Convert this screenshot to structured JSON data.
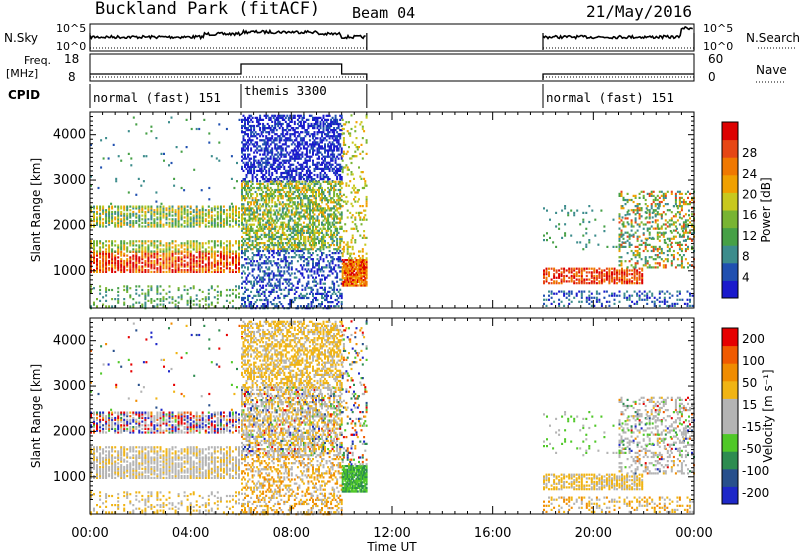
{
  "header": {
    "station": "Buckland Park (fitACF)",
    "beam": "Beam 04",
    "date": "21/May/2016"
  },
  "params": {
    "nsky_label": "N.Sky",
    "nsky_ticks": [
      "10^5",
      "10^0"
    ],
    "nsearch_label": "N.Search",
    "nsearch_ticks": [
      "10^5",
      "10^0"
    ],
    "freq_label_1": "Freq.",
    "freq_label_2": "[MHz]",
    "freq_ticks": [
      "18",
      "8"
    ],
    "nave_label": "Nave",
    "nave_ticks": [
      "60",
      "0"
    ],
    "cpid_label": "CPID",
    "cpid_segments": [
      {
        "label": "normal (fast) 151",
        "start_hour": 0
      },
      {
        "label": "themis 3300",
        "start_hour": 6
      },
      {
        "label": "normal (fast) 151",
        "start_hour": 18
      }
    ]
  },
  "chart_data": [
    {
      "type": "heatmap",
      "name": "power",
      "ylabel": "Slant Range [km]",
      "xlabel": "",
      "xlim": [
        0,
        24
      ],
      "ylim": [
        180,
        4500
      ],
      "yticks": [
        1000,
        2000,
        3000,
        4000
      ],
      "colorbar": {
        "label": "Power [dB]",
        "ticks": [
          "4",
          "8",
          "12",
          "16",
          "20",
          "24",
          "28"
        ],
        "colors": [
          "#1a1acc",
          "#2050b0",
          "#3c8c8c",
          "#46a046",
          "#78b432",
          "#c8c81e",
          "#f0a000",
          "#f07800",
          "#e64614",
          "#dc0000"
        ]
      }
    },
    {
      "type": "heatmap",
      "name": "velocity",
      "ylabel": "Slant Range [km]",
      "xlabel": "Time UT",
      "xlim": [
        0,
        24
      ],
      "ylim": [
        180,
        4500
      ],
      "yticks": [
        1000,
        2000,
        3000,
        4000
      ],
      "xticks": [
        "00:00",
        "04:00",
        "08:00",
        "12:00",
        "16:00",
        "20:00",
        "00:00"
      ],
      "colorbar": {
        "label": "Velocity [m s⁻¹]",
        "ticks": [
          "200",
          "100",
          "50",
          "15",
          "-15",
          "-50",
          "-100",
          "-200"
        ],
        "colors": [
          "#1e28c8",
          "#28508c",
          "#2d8c50",
          "#50c828",
          "#b4b4b4",
          "#b4b4b4",
          "#f0b414",
          "#f08c00",
          "#f05a00",
          "#e60000"
        ]
      }
    }
  ]
}
